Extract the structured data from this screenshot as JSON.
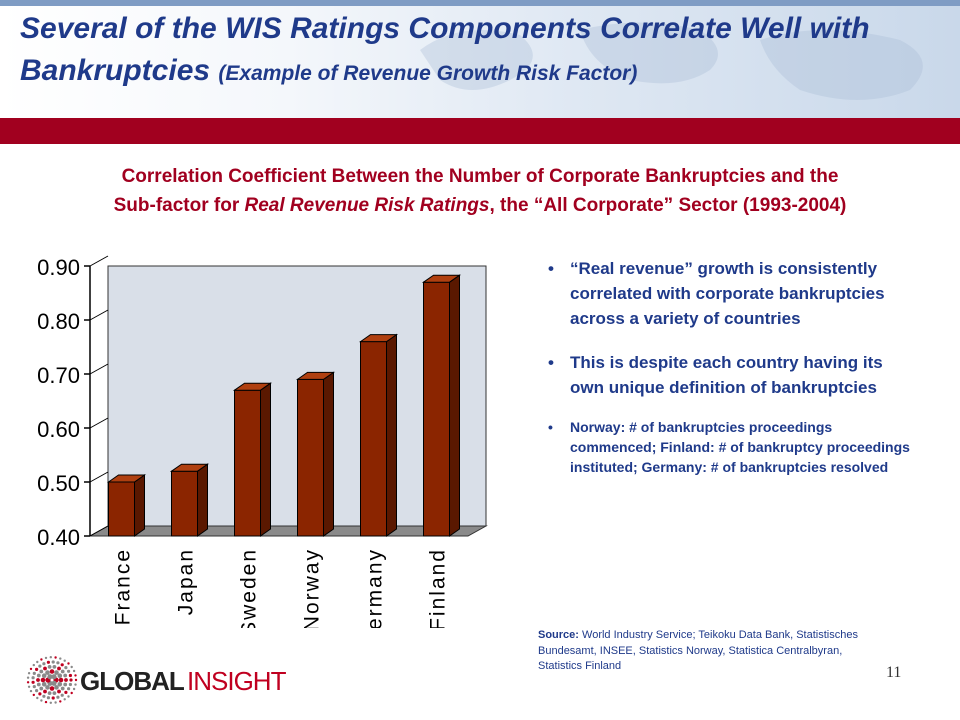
{
  "title": {
    "line1": "Several of the WIS Ratings Components Correlate Well with",
    "line2_main": "Bankruptcies",
    "line2_sub": "(Example of Revenue Growth Risk Factor)"
  },
  "subtitle": {
    "part1": "Correlation Coefficient Between the Number of Corporate Bankruptcies and the",
    "part2_pre": "Sub-factor for ",
    "part2_italic": "Real Revenue Risk Ratings",
    "part2_post": ", the “All Corporate” Sector (1993-2004)"
  },
  "chart_data": {
    "type": "bar",
    "title": "",
    "xlabel": "",
    "ylabel": "",
    "categories": [
      "France",
      "Japan",
      "Sweden",
      "Norway",
      "Germany",
      "Finland"
    ],
    "values": [
      0.5,
      0.52,
      0.67,
      0.69,
      0.76,
      0.87
    ],
    "ylim": [
      0.4,
      0.9
    ],
    "yticks": [
      "0.40",
      "0.50",
      "0.60",
      "0.70",
      "0.80",
      "0.90"
    ],
    "bar_color": "#8b2500",
    "plot_background": "#d9dfe8",
    "style": "3d"
  },
  "bullets": [
    "“Real revenue” growth is consistently correlated with corporate bankruptcies across a variety of countries",
    "This is despite each country having its own unique definition of bankruptcies",
    "Norway: # of bankruptcies proceedings commenced; Finland: # of bankruptcy proceedings instituted; Germany: # of bankruptcies resolved"
  ],
  "source": {
    "label": "Source:",
    "text": " World Industry Service; Teikoku Data Bank, Statistisches Bundesamt, INSEE, Statistics Norway, Statistica Centralbyran, Statistics Finland"
  },
  "page_number": "11",
  "logo": {
    "part1": "GLOBAL",
    "part2": "INSIGHT",
    "icon": "globe-dots-icon"
  },
  "colors": {
    "title": "#1f3a8a",
    "accent_red": "#a1001f",
    "bar": "#8b2500"
  }
}
